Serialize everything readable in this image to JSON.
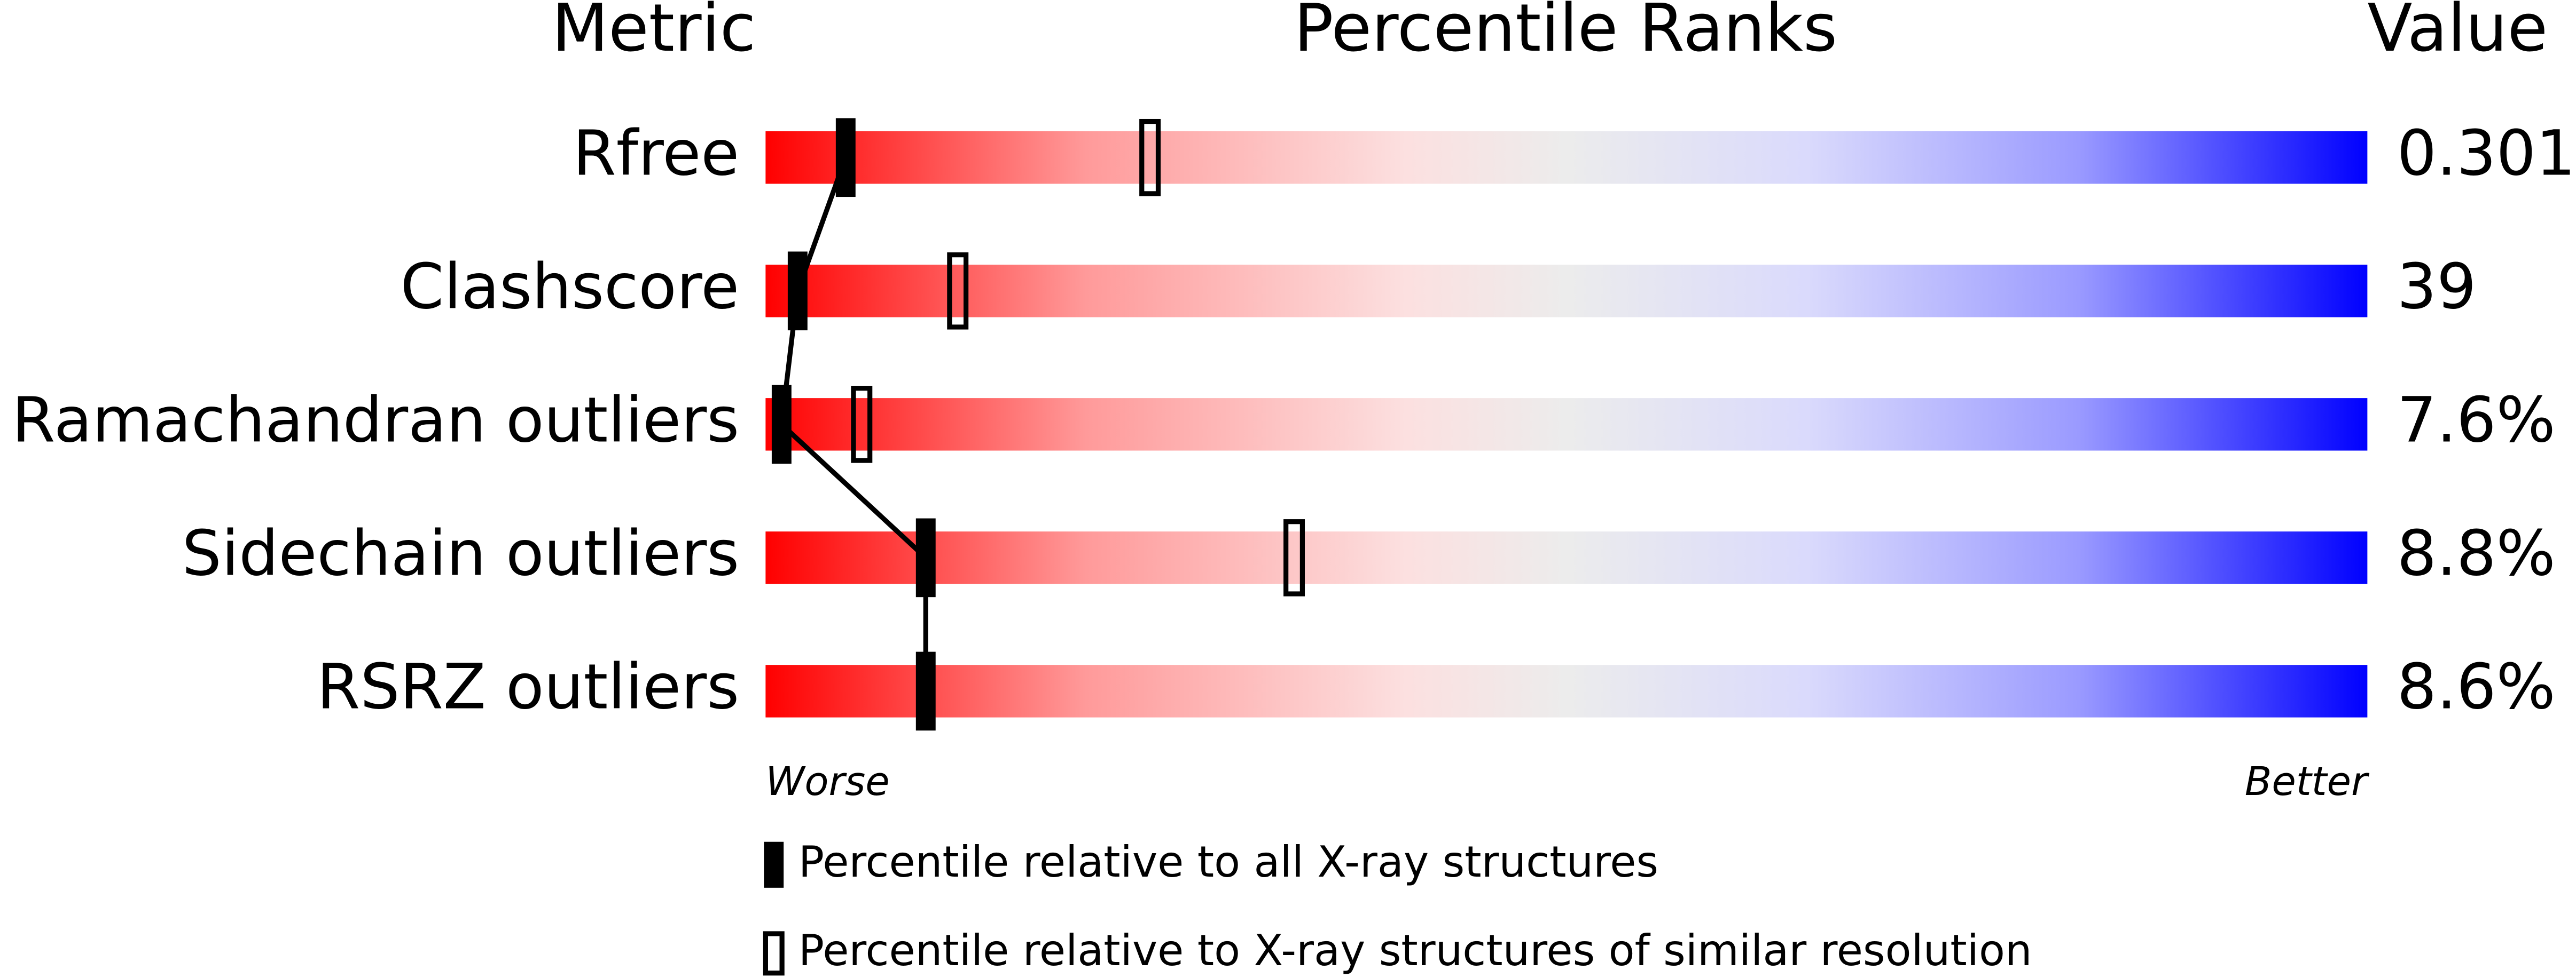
{
  "chart_data": {
    "type": "slider",
    "column_headers": [
      "Metric",
      "Percentile Ranks",
      "Value"
    ],
    "categories": [
      "Rfree",
      "Clashscore",
      "Ramachandran outliers",
      "Sidechain outliers",
      "RSRZ outliers"
    ],
    "metric_values": [
      "0.301",
      "39",
      "7.6%",
      "8.8%",
      "8.6%"
    ],
    "xlim": [
      0,
      100
    ],
    "worse_label": "Worse",
    "better_label": "Better",
    "series": [
      {
        "name": "Percentile relative to all X-ray structures",
        "color": "#000000",
        "filled": true,
        "values": [
          5,
          2,
          1,
          10,
          10
        ]
      },
      {
        "name": "Percentile relative to X-ray structures of similar resolution",
        "color": "#000000",
        "filled": false,
        "values": [
          24,
          12,
          6,
          33,
          null
        ]
      }
    ]
  }
}
